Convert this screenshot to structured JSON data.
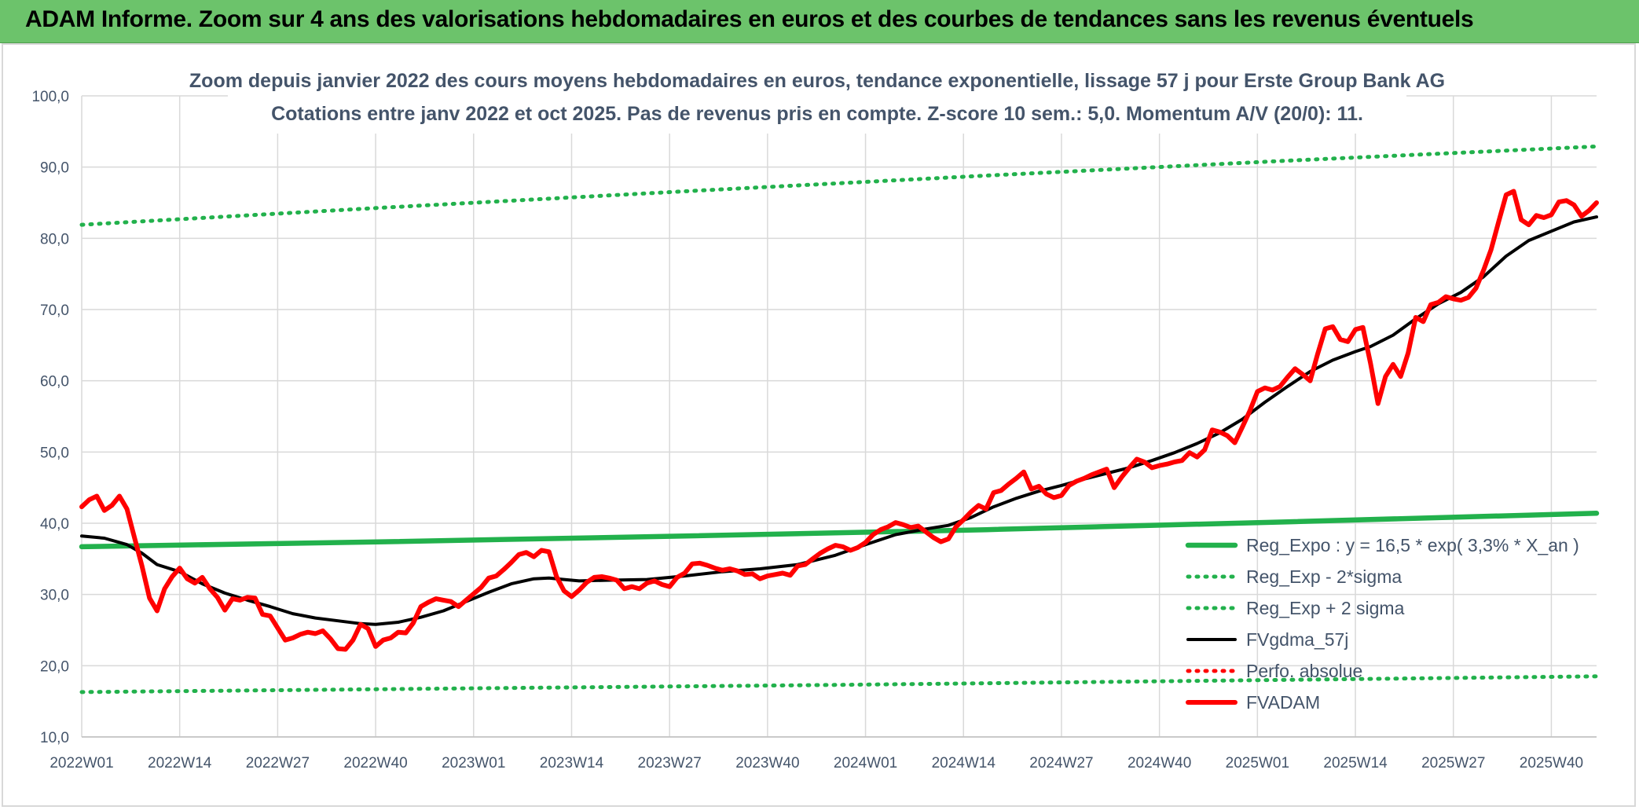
{
  "banner": {
    "title": "ADAM Informe. Zoom sur 4 ans des valorisations hebdomadaires en euros et des courbes de tendances sans les revenus éventuels"
  },
  "chart_data": {
    "type": "line",
    "title": "Zoom depuis janvier 2022 des cours moyens hebdomadaires en euros, tendance exponentielle, lissage 57 j pour Erste Group Bank AG",
    "subtitle": "Cotations entre janv 2022 et oct 2025. Pas de revenus pris en compte. Z-score 10 sem.: 5,0. Momentum A/V (20/0): 11.",
    "xlabel": "",
    "ylabel": "",
    "ylim": [
      10,
      100
    ],
    "yticks": [
      "10,0",
      "20,0",
      "30,0",
      "40,0",
      "50,0",
      "60,0",
      "70,0",
      "80,0",
      "90,0",
      "100,0"
    ],
    "xtick_labels": [
      "2022W01",
      "2022W14",
      "2022W27",
      "2022W40",
      "2023W01",
      "2023W14",
      "2023W27",
      "2023W40",
      "2024W01",
      "2024W14",
      "2024W27",
      "2024W40",
      "2025W01",
      "2025W14",
      "2025W27",
      "2025W40"
    ],
    "x_range_weeks": [
      0,
      201
    ],
    "grid": "vertical and horizontal",
    "legend_placement": "bottom-right",
    "series": [
      {
        "name": "Reg_Expo : y = 16,5 * exp( 3,3% *  X_an )",
        "color": "#22b14c",
        "style": "solid",
        "points": [
          [
            0,
            36.7
          ],
          [
            40,
            37.4
          ],
          [
            80,
            38.2
          ],
          [
            120,
            39.1
          ],
          [
            160,
            40.2
          ],
          [
            201,
            41.4
          ]
        ]
      },
      {
        "name": "Reg_Exp - 2*sigma",
        "color": "#22b14c",
        "style": "dotted",
        "points": [
          [
            0,
            16.3
          ],
          [
            50,
            16.8
          ],
          [
            100,
            17.3
          ],
          [
            150,
            17.9
          ],
          [
            201,
            18.5
          ]
        ]
      },
      {
        "name": "Reg_Exp + 2 sigma",
        "color": "#22b14c",
        "style": "dotted",
        "points": [
          [
            0,
            81.9
          ],
          [
            40,
            84.3
          ],
          [
            80,
            86.6
          ],
          [
            120,
            88.8
          ],
          [
            160,
            90.9
          ],
          [
            201,
            92.9
          ]
        ]
      },
      {
        "name": "FVgdma_57j",
        "color": "#000000",
        "style": "solid",
        "points": [
          [
            0,
            38.2
          ],
          [
            3,
            37.9
          ],
          [
            6,
            37
          ],
          [
            8,
            35.8
          ],
          [
            10,
            34.2
          ],
          [
            13,
            33.2
          ],
          [
            16,
            31.5
          ],
          [
            19,
            30.2
          ],
          [
            22,
            29.2
          ],
          [
            25,
            28.3
          ],
          [
            28,
            27.3
          ],
          [
            31,
            26.7
          ],
          [
            34,
            26.3
          ],
          [
            37,
            25.9
          ],
          [
            39,
            25.8
          ],
          [
            42,
            26.1
          ],
          [
            45,
            26.8
          ],
          [
            48,
            27.7
          ],
          [
            51,
            29
          ],
          [
            54,
            30.3
          ],
          [
            57,
            31.5
          ],
          [
            60,
            32.2
          ],
          [
            62,
            32.3
          ],
          [
            64,
            32.1
          ],
          [
            66,
            31.9
          ],
          [
            70,
            32
          ],
          [
            75,
            32.1
          ],
          [
            80,
            32.6
          ],
          [
            85,
            33.2
          ],
          [
            90,
            33.6
          ],
          [
            95,
            34.2
          ],
          [
            100,
            35.5
          ],
          [
            104,
            37
          ],
          [
            108,
            38.4
          ],
          [
            112,
            39.2
          ],
          [
            115,
            39.7
          ],
          [
            118,
            40.8
          ],
          [
            121,
            42.3
          ],
          [
            124,
            43.5
          ],
          [
            127,
            44.5
          ],
          [
            130,
            45.3
          ],
          [
            133,
            46.2
          ],
          [
            136,
            47
          ],
          [
            139,
            47.8
          ],
          [
            142,
            48.8
          ],
          [
            145,
            49.9
          ],
          [
            148,
            51.2
          ],
          [
            151,
            52.7
          ],
          [
            154,
            54.6
          ],
          [
            157,
            57
          ],
          [
            160,
            59.2
          ],
          [
            163,
            61.3
          ],
          [
            166,
            62.9
          ],
          [
            169,
            64.1
          ],
          [
            171,
            64.8
          ],
          [
            174,
            66.4
          ],
          [
            177,
            68.7
          ],
          [
            180,
            70.8
          ],
          [
            183,
            72.4
          ],
          [
            186,
            74.6
          ],
          [
            189,
            77.5
          ],
          [
            192,
            79.7
          ],
          [
            195,
            81
          ],
          [
            198,
            82.3
          ],
          [
            201,
            83
          ]
        ]
      },
      {
        "name": "Perfo. absolue",
        "color": "#ff0000",
        "style": "dotted",
        "points": []
      },
      {
        "name": "FVADAM",
        "color": "#ff0000",
        "style": "solid",
        "points": [
          [
            0,
            42.3
          ],
          [
            1,
            43.3
          ],
          [
            2,
            43.8
          ],
          [
            3,
            41.8
          ],
          [
            4,
            42.5
          ],
          [
            5,
            43.8
          ],
          [
            6,
            42
          ],
          [
            7,
            38
          ],
          [
            8,
            34
          ],
          [
            9,
            29.5
          ],
          [
            10,
            27.7
          ],
          [
            11,
            30.8
          ],
          [
            12,
            32.5
          ],
          [
            13,
            33.7
          ],
          [
            14,
            32.2
          ],
          [
            15,
            31.6
          ],
          [
            16,
            32.4
          ],
          [
            17,
            30.8
          ],
          [
            18,
            29.6
          ],
          [
            19,
            27.8
          ],
          [
            20,
            29.4
          ],
          [
            21,
            29.2
          ],
          [
            22,
            29.6
          ],
          [
            23,
            29.5
          ],
          [
            24,
            27.2
          ],
          [
            25,
            27
          ],
          [
            26,
            25.3
          ],
          [
            27,
            23.6
          ],
          [
            28,
            23.9
          ],
          [
            29,
            24.4
          ],
          [
            30,
            24.7
          ],
          [
            31,
            24.5
          ],
          [
            32,
            24.9
          ],
          [
            33,
            23.8
          ],
          [
            34,
            22.4
          ],
          [
            35,
            22.3
          ],
          [
            36,
            23.6
          ],
          [
            37,
            25.8
          ],
          [
            38,
            25.2
          ],
          [
            39,
            22.7
          ],
          [
            40,
            23.6
          ],
          [
            41,
            23.9
          ],
          [
            42,
            24.7
          ],
          [
            43,
            24.6
          ],
          [
            44,
            26
          ],
          [
            45,
            28.3
          ],
          [
            46,
            28.9
          ],
          [
            47,
            29.4
          ],
          [
            48,
            29.2
          ],
          [
            49,
            29
          ],
          [
            50,
            28.3
          ],
          [
            51,
            29.2
          ],
          [
            52,
            30.1
          ],
          [
            53,
            31
          ],
          [
            54,
            32.3
          ],
          [
            55,
            32.6
          ],
          [
            56,
            33.5
          ],
          [
            57,
            34.5
          ],
          [
            58,
            35.6
          ],
          [
            59,
            35.9
          ],
          [
            60,
            35.3
          ],
          [
            61,
            36.2
          ],
          [
            62,
            36
          ],
          [
            63,
            32.5
          ],
          [
            64,
            30.5
          ],
          [
            65,
            29.7
          ],
          [
            66,
            30.6
          ],
          [
            67,
            31.7
          ],
          [
            68,
            32.4
          ],
          [
            69,
            32.5
          ],
          [
            70,
            32.3
          ],
          [
            71,
            32
          ],
          [
            72,
            30.8
          ],
          [
            73,
            31.1
          ],
          [
            74,
            30.8
          ],
          [
            75,
            31.6
          ],
          [
            76,
            31.9
          ],
          [
            77,
            31.4
          ],
          [
            78,
            31.1
          ],
          [
            79,
            32.4
          ],
          [
            80,
            33
          ],
          [
            81,
            34.3
          ],
          [
            82,
            34.4
          ],
          [
            83,
            34.1
          ],
          [
            84,
            33.7
          ],
          [
            85,
            33.4
          ],
          [
            86,
            33.6
          ],
          [
            87,
            33.3
          ],
          [
            88,
            32.8
          ],
          [
            89,
            32.9
          ],
          [
            90,
            32.2
          ],
          [
            91,
            32.6
          ],
          [
            92,
            32.8
          ],
          [
            93,
            33
          ],
          [
            94,
            32.7
          ],
          [
            95,
            34
          ],
          [
            96,
            34.2
          ],
          [
            97,
            35
          ],
          [
            98,
            35.8
          ],
          [
            99,
            36.4
          ],
          [
            100,
            36.9
          ],
          [
            101,
            36.7
          ],
          [
            102,
            36.2
          ],
          [
            103,
            36.6
          ],
          [
            104,
            37.3
          ],
          [
            105,
            38.4
          ],
          [
            106,
            39.1
          ],
          [
            107,
            39.5
          ],
          [
            108,
            40.1
          ],
          [
            109,
            39.8
          ],
          [
            110,
            39.4
          ],
          [
            111,
            39.6
          ],
          [
            112,
            38.8
          ],
          [
            113,
            38
          ],
          [
            114,
            37.4
          ],
          [
            115,
            37.8
          ],
          [
            116,
            39.5
          ],
          [
            117,
            40.5
          ],
          [
            118,
            41.6
          ],
          [
            119,
            42.5
          ],
          [
            120,
            42
          ],
          [
            121,
            44.3
          ],
          [
            122,
            44.6
          ],
          [
            123,
            45.5
          ],
          [
            124,
            46.3
          ],
          [
            125,
            47.2
          ],
          [
            126,
            44.8
          ],
          [
            127,
            45.2
          ],
          [
            128,
            44.1
          ],
          [
            129,
            43.6
          ],
          [
            130,
            43.9
          ],
          [
            131,
            45.3
          ],
          [
            132,
            45.9
          ],
          [
            133,
            46.3
          ],
          [
            134,
            46.8
          ],
          [
            135,
            47.2
          ],
          [
            136,
            47.6
          ],
          [
            137,
            45
          ],
          [
            138,
            46.5
          ],
          [
            139,
            47.8
          ],
          [
            140,
            49
          ],
          [
            141,
            48.6
          ],
          [
            142,
            47.8
          ],
          [
            143,
            48.1
          ],
          [
            144,
            48.3
          ],
          [
            145,
            48.6
          ],
          [
            146,
            48.8
          ],
          [
            147,
            49.9
          ],
          [
            148,
            49.3
          ],
          [
            149,
            50.3
          ],
          [
            150,
            53.1
          ],
          [
            151,
            52.8
          ],
          [
            152,
            52.3
          ],
          [
            153,
            51.3
          ],
          [
            154,
            53.5
          ],
          [
            155,
            55.8
          ],
          [
            156,
            58.5
          ],
          [
            157,
            59
          ],
          [
            158,
            58.7
          ],
          [
            159,
            59.2
          ],
          [
            160,
            60.5
          ],
          [
            161,
            61.7
          ],
          [
            162,
            60.9
          ],
          [
            163,
            60
          ],
          [
            164,
            63.8
          ],
          [
            165,
            67.3
          ],
          [
            166,
            67.6
          ],
          [
            167,
            65.8
          ],
          [
            168,
            65.5
          ],
          [
            169,
            67.2
          ],
          [
            170,
            67.5
          ],
          [
            171,
            62.5
          ],
          [
            172,
            56.8
          ],
          [
            173,
            60.6
          ],
          [
            174,
            62.3
          ],
          [
            175,
            60.6
          ],
          [
            176,
            63.9
          ],
          [
            177,
            68.9
          ],
          [
            178,
            68.3
          ],
          [
            179,
            70.7
          ],
          [
            180,
            71
          ],
          [
            181,
            71.8
          ],
          [
            182,
            71.5
          ],
          [
            183,
            71.3
          ],
          [
            184,
            71.7
          ],
          [
            185,
            73
          ],
          [
            186,
            75.5
          ],
          [
            187,
            78.4
          ],
          [
            188,
            82.3
          ],
          [
            189,
            86.1
          ],
          [
            190,
            86.6
          ],
          [
            191,
            82.6
          ],
          [
            192,
            81.9
          ],
          [
            193,
            83.2
          ],
          [
            194,
            82.9
          ],
          [
            195,
            83.3
          ],
          [
            196,
            85.1
          ],
          [
            197,
            85.3
          ],
          [
            198,
            84.7
          ],
          [
            199,
            83.1
          ],
          [
            200,
            83.9
          ],
          [
            201,
            85
          ]
        ]
      }
    ]
  }
}
